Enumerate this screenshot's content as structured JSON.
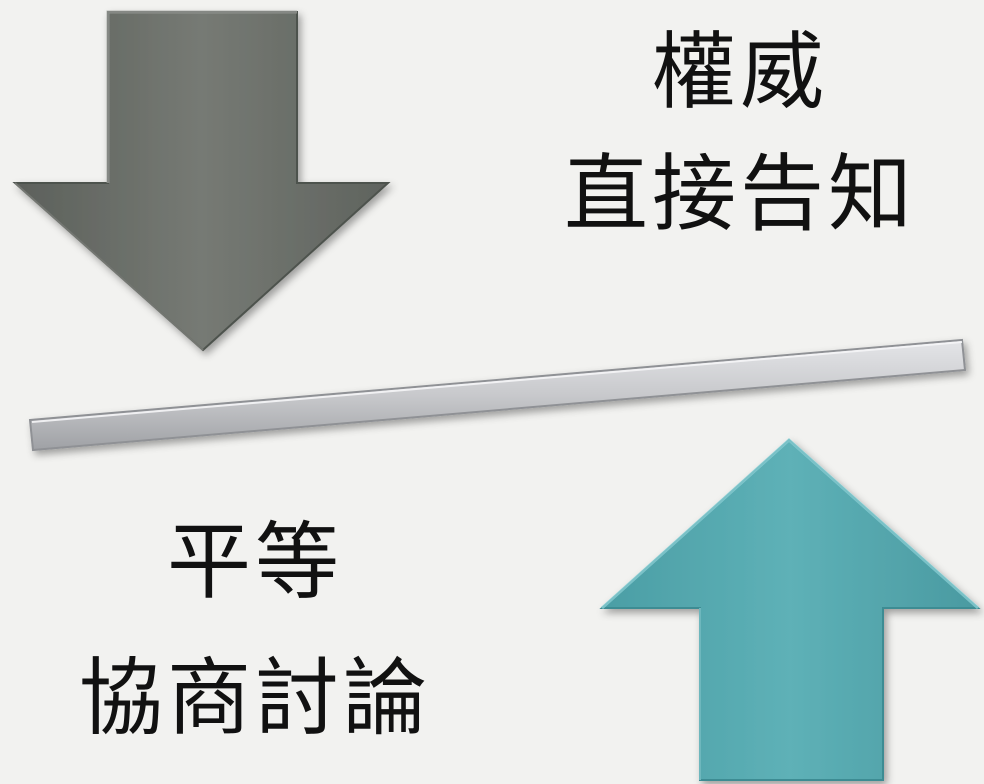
{
  "top_label": {
    "line1": "權威",
    "line2": "直接告知"
  },
  "bottom_label": {
    "line1": "平等",
    "line2": "協商討論"
  },
  "colors": {
    "background": "#f2f2f0",
    "down_arrow": "#71756f",
    "up_arrow": "#5aadb3",
    "bar": "#c9cacd",
    "text": "#111111"
  },
  "icons": {
    "down_arrow": "arrow-down-icon",
    "up_arrow": "arrow-up-icon"
  }
}
